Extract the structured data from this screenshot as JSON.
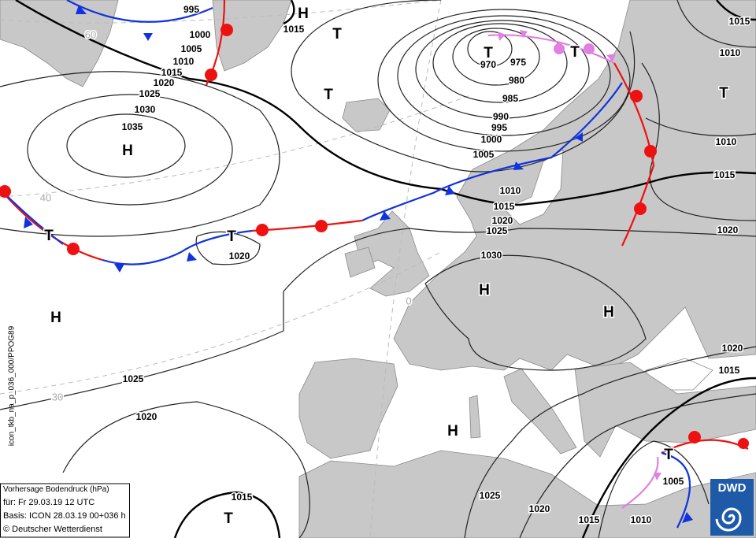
{
  "map": {
    "pressure_labels": [
      "995",
      "1000",
      "1005",
      "1010",
      "1015",
      "1020",
      "1025",
      "1030",
      "1035",
      "1015",
      "970",
      "975",
      "980",
      "985",
      "990",
      "995",
      "1000",
      "1005",
      "1010",
      "1015",
      "1020",
      "1025",
      "1030",
      "1020",
      "1025",
      "1020",
      "1015",
      "1025",
      "1020",
      "1015",
      "1010",
      "1005",
      "1015",
      "1010",
      "1010",
      "1015",
      "1020",
      "1020",
      "1015"
    ],
    "centers": [
      "H",
      "T",
      "T",
      "T",
      "T",
      "T",
      "H",
      "T",
      "T",
      "H",
      "H",
      "H",
      "H",
      "T",
      "T"
    ],
    "grid_labels": [
      "60",
      "40",
      "30",
      "0"
    ],
    "side_label": "icon_tkb_na_p_036_000/PPOG89",
    "info_box": {
      "title": "Vorhersage Bodendruck (hPa)",
      "valid": "für:  Fr 29.03.19  12 UTC",
      "basis": "Basis: ICON  28.03.19 00+036 h",
      "copyright": "© Deutscher Wetterdienst"
    },
    "logo": "DWD"
  }
}
